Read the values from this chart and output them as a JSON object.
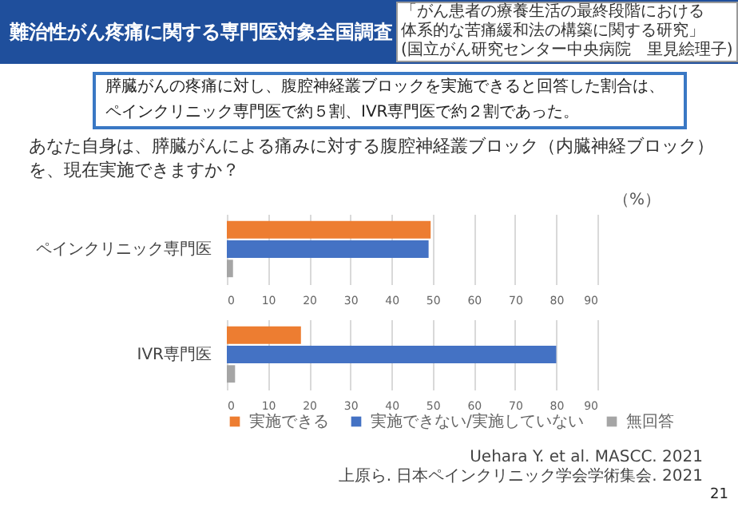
{
  "chart_data": [
    {
      "type": "bar",
      "orientation": "horizontal",
      "title": "難治性がん疼痛に関する専門医対象全国調査",
      "subtitle": "あなた自身は、膵臓がんによる痛みに対する腹腔神経叢ブロック（内臓神経ブロック）を、現在実施できますか？",
      "xlabel": "（%）",
      "annotations": [
        "「がん患者の療養生活の最終段階における",
        "体系的な苦痛緩和法の構築に関する研究」",
        "(国立がん研究センター中央病院　里見絵理子)",
        "膵臓がんの疼痛に対し、腹腔神経叢ブロックを実施できると回答した割合は、",
        "ペインクリニック専門医で約５割、IVR専門医で約２割であった。"
      ],
      "categories": [
        "ペインクリニック専門医"
      ],
      "series": [
        {
          "color": "#ed7d31",
          "values": [
            49.5
          ]
        },
        {
          "color": "#4472c4",
          "values": [
            49
          ]
        },
        {
          "color": "#a5a5a5",
          "values": [
            1.5
          ]
        }
      ],
      "xlim": [
        0,
        90
      ],
      "xticks": [
        0,
        10,
        20,
        30,
        40,
        50,
        60,
        70,
        80,
        90
      ],
      "grid": "x"
    },
    {
      "type": "bar",
      "orientation": "horizontal",
      "annotations": [
        "Uehara Y. et al. MASCC. 2021",
        "上原ら. 日本ペインクリニック学会学術集会. 2021",
        "21"
      ],
      "categories": [
        "IVR専門医"
      ],
      "series": [
        {
          "name": "実施できる",
          "color": "#ed7d31",
          "values": [
            18
          ]
        },
        {
          "name": "実施できない/実施していない",
          "color": "#4472c4",
          "values": [
            80
          ]
        },
        {
          "name": "無回答",
          "color": "#a5a5a5",
          "values": [
            2
          ]
        }
      ],
      "xlim": [
        0,
        90
      ],
      "xticks": [
        0,
        10,
        20,
        30,
        40,
        50,
        60,
        70,
        80,
        90
      ],
      "grid": "x",
      "legend": "bottom"
    }
  ]
}
